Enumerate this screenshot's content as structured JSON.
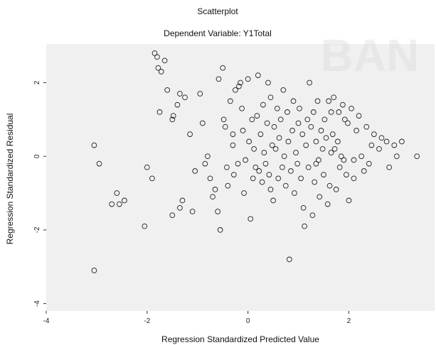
{
  "chart_data": {
    "type": "scatter",
    "title": "Scatterplot",
    "subtitle": "Dependent Variable: Y1Total",
    "xlabel": "Regression Standardized Predicted Value",
    "ylabel": "Regression Standardized Residual",
    "xlim": [
      -4.0,
      3.7
    ],
    "ylim": [
      -4.2,
      3.05
    ],
    "xticks": [
      -4,
      -2,
      0,
      2
    ],
    "yticks": [
      -4,
      -2,
      0,
      2
    ],
    "xtick_labels": [
      "-4",
      "-2",
      "0",
      "2"
    ],
    "ytick_labels": [
      "-4",
      "-2",
      "0",
      "2"
    ],
    "grid": false,
    "marker": "circle-open",
    "background_color": "#f0f0f0",
    "point_color": "#222222",
    "points": [
      [
        -3.05,
        0.3
      ],
      [
        -3.05,
        -3.1
      ],
      [
        -2.95,
        -0.2
      ],
      [
        -2.7,
        -1.3
      ],
      [
        -2.6,
        -1.0
      ],
      [
        -2.55,
        -1.3
      ],
      [
        -2.45,
        -1.2
      ],
      [
        -2.05,
        -1.9
      ],
      [
        -2.0,
        -0.3
      ],
      [
        -1.9,
        -0.6
      ],
      [
        -1.85,
        2.8
      ],
      [
        -1.8,
        2.7
      ],
      [
        -1.78,
        2.4
      ],
      [
        -1.75,
        1.2
      ],
      [
        -1.72,
        2.3
      ],
      [
        -1.65,
        2.6
      ],
      [
        -1.6,
        1.8
      ],
      [
        -1.5,
        1.0
      ],
      [
        -1.48,
        1.1
      ],
      [
        -1.4,
        1.4
      ],
      [
        -1.35,
        1.7
      ],
      [
        -1.5,
        -1.6
      ],
      [
        -1.35,
        -1.4
      ],
      [
        -1.3,
        -1.2
      ],
      [
        -1.25,
        1.6
      ],
      [
        -1.15,
        0.6
      ],
      [
        -1.1,
        -1.5
      ],
      [
        -1.05,
        -0.4
      ],
      [
        -0.95,
        1.7
      ],
      [
        -0.9,
        0.9
      ],
      [
        -0.85,
        -0.2
      ],
      [
        -0.8,
        0.0
      ],
      [
        -0.75,
        -0.6
      ],
      [
        -0.7,
        -1.1
      ],
      [
        -0.65,
        -0.9
      ],
      [
        -0.6,
        -1.5
      ],
      [
        -0.58,
        2.1
      ],
      [
        -0.55,
        -2.0
      ],
      [
        -0.5,
        2.4
      ],
      [
        -0.48,
        1.0
      ],
      [
        -0.45,
        0.8
      ],
      [
        -0.42,
        -0.3
      ],
      [
        -0.4,
        -0.8
      ],
      [
        -0.35,
        1.5
      ],
      [
        -0.3,
        0.3
      ],
      [
        -0.28,
        -0.5
      ],
      [
        -0.25,
        1.8
      ],
      [
        -0.2,
        -0.2
      ],
      [
        -0.18,
        1.9
      ],
      [
        -0.15,
        2.0
      ],
      [
        -0.12,
        1.3
      ],
      [
        -0.1,
        0.7
      ],
      [
        -0.08,
        -1.0
      ],
      [
        -0.05,
        -0.1
      ],
      [
        0.0,
        2.1
      ],
      [
        0.02,
        0.4
      ],
      [
        0.05,
        -1.7
      ],
      [
        0.08,
        1.0
      ],
      [
        0.1,
        -0.6
      ],
      [
        0.12,
        0.2
      ],
      [
        0.15,
        -0.3
      ],
      [
        0.18,
        1.1
      ],
      [
        0.2,
        2.2
      ],
      [
        0.22,
        -0.4
      ],
      [
        0.25,
        0.6
      ],
      [
        0.28,
        -0.7
      ],
      [
        0.3,
        1.4
      ],
      [
        0.32,
        0.1
      ],
      [
        0.35,
        -0.2
      ],
      [
        0.38,
        0.9
      ],
      [
        0.4,
        2.0
      ],
      [
        0.42,
        -0.5
      ],
      [
        0.45,
        1.6
      ],
      [
        0.48,
        0.3
      ],
      [
        0.5,
        -1.2
      ],
      [
        0.52,
        0.8
      ],
      [
        0.55,
        0.2
      ],
      [
        0.58,
        1.3
      ],
      [
        0.6,
        -0.6
      ],
      [
        0.62,
        0.5
      ],
      [
        0.65,
        1.0
      ],
      [
        0.68,
        -0.3
      ],
      [
        0.7,
        1.8
      ],
      [
        0.72,
        0.0
      ],
      [
        0.75,
        -0.8
      ],
      [
        0.78,
        1.2
      ],
      [
        0.8,
        0.4
      ],
      [
        0.82,
        -2.8
      ],
      [
        0.85,
        -0.4
      ],
      [
        0.88,
        0.7
      ],
      [
        0.9,
        1.5
      ],
      [
        0.92,
        -1.0
      ],
      [
        0.95,
        0.1
      ],
      [
        0.98,
        -0.2
      ],
      [
        1.0,
        0.9
      ],
      [
        1.02,
        1.3
      ],
      [
        1.05,
        -0.6
      ],
      [
        1.08,
        0.6
      ],
      [
        1.1,
        -1.4
      ],
      [
        1.12,
        -1.9
      ],
      [
        1.15,
        0.3
      ],
      [
        1.18,
        1.0
      ],
      [
        1.2,
        -0.3
      ],
      [
        1.22,
        2.0
      ],
      [
        1.25,
        0.8
      ],
      [
        1.28,
        -1.6
      ],
      [
        1.3,
        1.2
      ],
      [
        1.32,
        -0.7
      ],
      [
        1.35,
        0.4
      ],
      [
        1.38,
        1.5
      ],
      [
        1.4,
        -0.1
      ],
      [
        1.42,
        -1.1
      ],
      [
        1.45,
        0.7
      ],
      [
        1.48,
        0.2
      ],
      [
        1.5,
        -0.5
      ],
      [
        1.52,
        1.0
      ],
      [
        1.55,
        0.5
      ],
      [
        1.58,
        -1.3
      ],
      [
        1.6,
        1.5
      ],
      [
        1.62,
        -0.8
      ],
      [
        1.65,
        0.1
      ],
      [
        1.68,
        0.6
      ],
      [
        1.7,
        1.6
      ],
      [
        1.72,
        0.2
      ],
      [
        1.75,
        -0.9
      ],
      [
        1.78,
        0.4
      ],
      [
        1.8,
        1.2
      ],
      [
        1.82,
        -0.3
      ],
      [
        1.85,
        0.0
      ],
      [
        1.88,
        1.4
      ],
      [
        1.9,
        -0.1
      ],
      [
        1.92,
        1.0
      ],
      [
        1.95,
        -0.5
      ],
      [
        1.98,
        0.9
      ],
      [
        2.0,
        -1.2
      ],
      [
        2.05,
        1.3
      ],
      [
        2.1,
        -0.1
      ],
      [
        2.15,
        0.7
      ],
      [
        2.2,
        1.1
      ],
      [
        2.25,
        0.0
      ],
      [
        2.3,
        -0.4
      ],
      [
        2.35,
        0.8
      ],
      [
        2.4,
        -0.2
      ],
      [
        2.45,
        0.3
      ],
      [
        2.5,
        0.6
      ],
      [
        2.6,
        0.2
      ],
      [
        2.65,
        0.5
      ],
      [
        2.75,
        0.4
      ],
      [
        2.8,
        -0.3
      ],
      [
        2.9,
        0.3
      ],
      [
        2.95,
        0.0
      ],
      [
        3.05,
        0.4
      ],
      [
        3.35,
        0.0
      ],
      [
        2.1,
        -0.6
      ],
      [
        1.65,
        1.2
      ],
      [
        -0.3,
        0.6
      ],
      [
        0.45,
        -0.9
      ],
      [
        1.35,
        -0.2
      ]
    ]
  },
  "watermark": {
    "text": "BAN",
    "color": "#d7d7d7"
  }
}
